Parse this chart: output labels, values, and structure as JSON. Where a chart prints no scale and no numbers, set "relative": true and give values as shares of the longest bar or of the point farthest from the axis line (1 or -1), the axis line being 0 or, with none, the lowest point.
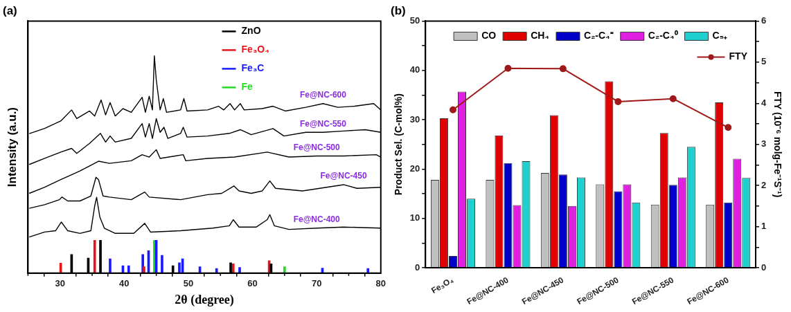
{
  "chart_data": [
    {
      "type": "line",
      "title": "(a)",
      "xlabel": "2θ (degree)",
      "ylabel": "Intensity (a.u.)",
      "relative": true,
      "legend": "top",
      "xlim": [
        25,
        80
      ],
      "xticks": [
        {
          "value": 25,
          "label": null
        },
        30,
        {
          "value": 35,
          "label": null
        },
        40,
        {
          "value": 45,
          "label": null
        },
        50,
        {
          "value": 55,
          "label": null
        },
        60,
        {
          "value": 65,
          "label": null
        },
        70,
        {
          "value": 75,
          "label": null
        },
        80
      ],
      "series": [
        {
          "name": "Fe@NC-600",
          "color": "#000000",
          "x": [
            25.2,
            27.6,
            30.1,
            31.8,
            32.6,
            34.6,
            35.4,
            36.4,
            37.1,
            37.8,
            38.6,
            39.8,
            41.1,
            42.8,
            43.3,
            43.9,
            44.4,
            44.7,
            45.0,
            45.6,
            46.1,
            46.6,
            48.8,
            49.3,
            49.8,
            53.0,
            54.7,
            55.5,
            56.5,
            57.2,
            58.1,
            58.7,
            61.5,
            63.2,
            65.1,
            68.3,
            71.0,
            73.3,
            75.9,
            78.9,
            80.0
          ],
          "values": [
            0.642,
            0.666,
            0.7,
            0.751,
            0.711,
            0.746,
            0.723,
            0.797,
            0.728,
            0.785,
            0.723,
            0.757,
            0.74,
            0.809,
            0.74,
            0.814,
            0.751,
            1,
            0.889,
            0.751,
            0.803,
            0.74,
            0.751,
            0.803,
            0.746,
            0.751,
            0.768,
            0.751,
            0.78,
            0.751,
            0.78,
            0.751,
            0.757,
            0.768,
            0.746,
            0.763,
            0.78,
            0.763,
            0.768,
            0.78,
            0.751
          ]
        },
        {
          "name": "Fe@NC-550",
          "color": "#000000",
          "x": [
            25.2,
            27.6,
            30.1,
            31.8,
            32.6,
            34.6,
            36.3,
            37.1,
            37.8,
            38.6,
            41.1,
            42.8,
            43.3,
            43.9,
            44.4,
            45.0,
            45.6,
            46.2,
            46.8,
            48.8,
            49.2,
            49.8,
            53.0,
            56.4,
            58.1,
            59.8,
            63.2,
            64.9,
            68.3,
            71.0,
            74.2,
            77.6,
            80.0
          ],
          "values": [
            0.5,
            0.528,
            0.557,
            0.574,
            0.551,
            0.597,
            0.643,
            0.603,
            0.631,
            0.603,
            0.62,
            0.688,
            0.626,
            0.688,
            0.62,
            0.711,
            0.648,
            0.671,
            0.62,
            0.643,
            0.671,
            0.626,
            0.631,
            0.643,
            0.66,
            0.637,
            0.665,
            0.631,
            0.648,
            0.648,
            0.654,
            0.66,
            0.648
          ]
        },
        {
          "name": "Fe@NC-500",
          "color": "#000000",
          "x": [
            25.2,
            27.6,
            30.1,
            33.1,
            36.0,
            37.7,
            41.1,
            42.8,
            43.9,
            45.0,
            45.6,
            49.2,
            49.6,
            53.0,
            57.2,
            62.3,
            65.7,
            70.0,
            74.2,
            79.3,
            80.0
          ],
          "values": [
            0.367,
            0.395,
            0.43,
            0.47,
            0.515,
            0.505,
            0.517,
            0.545,
            0.534,
            0.568,
            0.528,
            0.545,
            0.517,
            0.528,
            0.534,
            0.557,
            0.534,
            0.539,
            0.539,
            0.545,
            0.534
          ]
        },
        {
          "name": "Fe@NC-450",
          "color": "#000000",
          "x": [
            25.2,
            27.6,
            29.9,
            30.3,
            31.2,
            33.1,
            34.8,
            35.6,
            36.0,
            36.7,
            37.7,
            41.1,
            43.2,
            43.9,
            48.8,
            53.0,
            55.2,
            57.1,
            57.9,
            59.8,
            61.5,
            62.7,
            63.6,
            67.8,
            74.2,
            76.3,
            80.0
          ],
          "values": [
            0.298,
            0.315,
            0.338,
            0.35,
            0.332,
            0.332,
            0.355,
            0.441,
            0.43,
            0.355,
            0.35,
            0.338,
            0.373,
            0.35,
            0.338,
            0.361,
            0.367,
            0.401,
            0.378,
            0.367,
            0.378,
            0.424,
            0.39,
            0.378,
            0.407,
            0.39,
            0.395
          ]
        },
        {
          "name": "Fe@NC-400",
          "color": "#000000",
          "x": [
            25.2,
            27.6,
            29.3,
            30.2,
            31.2,
            33.1,
            34.8,
            35.4,
            35.7,
            36.2,
            36.9,
            38.6,
            41.5,
            43.2,
            44.1,
            48.8,
            53.8,
            56.4,
            57.0,
            57.9,
            60.6,
            62.3,
            62.7,
            63.4,
            65.7,
            70.0,
            74.2,
            80.0
          ],
          "values": [
            0.166,
            0.189,
            0.195,
            0.235,
            0.195,
            0.183,
            0.195,
            0.309,
            0.349,
            0.258,
            0.207,
            0.183,
            0.183,
            0.229,
            0.189,
            0.195,
            0.207,
            0.218,
            0.246,
            0.212,
            0.212,
            0.246,
            0.269,
            0.218,
            0.201,
            0.207,
            0.212,
            0.207
          ]
        },
        {
          "type": "bar",
          "name": "ZnO",
          "color": "#000000",
          "x": [
            31.8,
            34.4,
            36.3,
            47.6,
            56.6,
            62.9
          ],
          "values": [
            0.086,
            0.069,
            0.151,
            0.034,
            0.048,
            0.043
          ]
        },
        {
          "type": "bar",
          "name": "Fe₃O₄",
          "color": "#e8141c",
          "x": [
            30.1,
            35.4,
            43.1,
            57.0,
            62.6
          ],
          "values": [
            0.046,
            0.151,
            0.029,
            0.043,
            0.057
          ]
        },
        {
          "type": "bar",
          "name": "Fe₃C",
          "color": "#1a1aff",
          "x": [
            37.8,
            39.8,
            40.7,
            42.9,
            43.8,
            45.0,
            45.9,
            48.6,
            49.1,
            51.8,
            54.4,
            58.0,
            70.9,
            78.0
          ],
          "values": [
            0.066,
            0.034,
            0.034,
            0.086,
            0.103,
            0.151,
            0.082,
            0.048,
            0.066,
            0.029,
            0.021,
            0.026,
            0.023,
            0.021
          ]
        },
        {
          "type": "bar",
          "name": "Fe",
          "color": "#22dd22",
          "x": [
            44.7,
            65.0
          ],
          "values": [
            0.151,
            0.029
          ]
        }
      ]
    },
    {
      "type": "bar",
      "title": "(b)",
      "ylabel": "Product Sel. (C-mol%)",
      "y2label": "FTY (10⁻⁶ molg-Fe⁻¹S⁻¹)",
      "legend": "top",
      "marker": "circle",
      "categories": [
        "Fe₃O₄",
        "Fe@NC-400",
        "Fe@NC-450",
        "Fe@NC-500",
        "Fe@NC-550",
        "Fe@NC-600"
      ],
      "ylim": [
        0,
        50
      ],
      "yticks": [
        0,
        {
          "value": 5,
          "label": null
        },
        10,
        {
          "value": 15,
          "label": null
        },
        20,
        {
          "value": 25,
          "label": null
        },
        30,
        {
          "value": 35,
          "label": null
        },
        40,
        {
          "value": 45,
          "label": null
        },
        50
      ],
      "y2lim": [
        0,
        6
      ],
      "y2ticks": [
        0,
        {
          "value": 0.5,
          "label": null
        },
        1,
        {
          "value": 1.5,
          "label": null
        },
        2,
        {
          "value": 2.5,
          "label": null
        },
        3,
        {
          "value": 3.5,
          "label": null
        },
        4,
        {
          "value": 4.5,
          "label": null
        },
        5,
        {
          "value": 5.5,
          "label": null
        },
        6
      ],
      "series": [
        {
          "name": "CO",
          "color": "#c0c0c0",
          "values": [
            17.8,
            17.8,
            19.2,
            16.9,
            12.8,
            12.8
          ]
        },
        {
          "name": "CH₄",
          "color": "#e00000",
          "values": [
            30.3,
            26.8,
            30.9,
            37.8,
            27.3,
            33.5
          ]
        },
        {
          "name": "C₂-C₄⁼",
          "color": "#0000c8",
          "values": [
            2.4,
            21.2,
            18.9,
            15.5,
            16.8,
            13.2
          ]
        },
        {
          "name": "C₂-C₄⁰",
          "color": "#e020e0",
          "values": [
            35.7,
            12.7,
            12.5,
            16.9,
            18.3,
            22.1
          ]
        },
        {
          "name": "C₅₊",
          "color": "#20d0d0",
          "values": [
            14.0,
            21.6,
            18.3,
            13.2,
            24.5,
            18.2
          ]
        },
        {
          "name": "FTY",
          "type": "line",
          "axis": "y2",
          "color": "#a01818",
          "values": [
            3.84,
            4.85,
            4.84,
            4.04,
            4.11,
            3.41
          ]
        }
      ]
    }
  ]
}
